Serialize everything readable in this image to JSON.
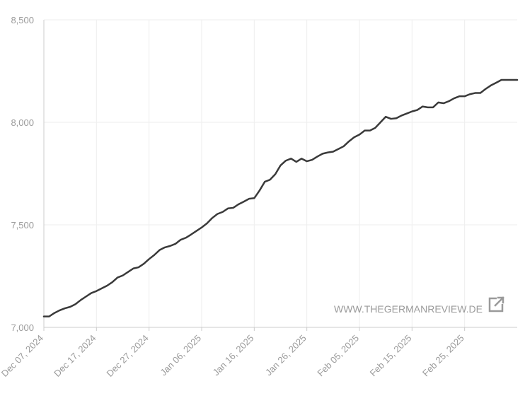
{
  "chart_data": {
    "type": "line",
    "title": "",
    "xlabel": "",
    "ylabel": "",
    "ylim": [
      7000,
      8500
    ],
    "y_ticks": [
      {
        "value": 7000,
        "label": "7,000"
      },
      {
        "value": 7500,
        "label": "7,500"
      },
      {
        "value": 8000,
        "label": "8,000"
      },
      {
        "value": 8500,
        "label": "8,500"
      }
    ],
    "x_range": [
      "2024-12-07",
      "2025-03-07"
    ],
    "x_ticks": [
      {
        "date": "2024-12-07",
        "label": "Dec 07, 2024"
      },
      {
        "date": "2024-12-17",
        "label": "Dec 17, 2024"
      },
      {
        "date": "2024-12-27",
        "label": "Dec 27, 2024"
      },
      {
        "date": "2025-01-06",
        "label": "Jan 06, 2025"
      },
      {
        "date": "2025-01-16",
        "label": "Jan 16, 2025"
      },
      {
        "date": "2025-01-26",
        "label": "Jan 26, 2025"
      },
      {
        "date": "2025-02-05",
        "label": "Feb 05, 2025"
      },
      {
        "date": "2025-02-15",
        "label": "Feb 15, 2025"
      },
      {
        "date": "2025-02-25",
        "label": "Feb 25, 2025"
      }
    ],
    "grid": true,
    "series": [
      {
        "color": "#3a3a3a",
        "points": [
          [
            "2024-12-07",
            7053
          ],
          [
            "2024-12-08",
            7053
          ],
          [
            "2024-12-09",
            7070
          ],
          [
            "2024-12-10",
            7083
          ],
          [
            "2024-12-11",
            7093
          ],
          [
            "2024-12-12",
            7100
          ],
          [
            "2024-12-13",
            7113
          ],
          [
            "2024-12-14",
            7133
          ],
          [
            "2024-12-15",
            7150
          ],
          [
            "2024-12-16",
            7167
          ],
          [
            "2024-12-17",
            7177
          ],
          [
            "2024-12-18",
            7190
          ],
          [
            "2024-12-19",
            7203
          ],
          [
            "2024-12-20",
            7220
          ],
          [
            "2024-12-21",
            7243
          ],
          [
            "2024-12-22",
            7253
          ],
          [
            "2024-12-23",
            7270
          ],
          [
            "2024-12-24",
            7287
          ],
          [
            "2024-12-25",
            7293
          ],
          [
            "2024-12-26",
            7310
          ],
          [
            "2024-12-27",
            7333
          ],
          [
            "2024-12-28",
            7353
          ],
          [
            "2024-12-29",
            7377
          ],
          [
            "2024-12-30",
            7390
          ],
          [
            "2024-12-31",
            7397
          ],
          [
            "2025-01-01",
            7407
          ],
          [
            "2025-01-02",
            7427
          ],
          [
            "2025-01-03",
            7437
          ],
          [
            "2025-01-04",
            7453
          ],
          [
            "2025-01-05",
            7470
          ],
          [
            "2025-01-06",
            7487
          ],
          [
            "2025-01-07",
            7507
          ],
          [
            "2025-01-08",
            7533
          ],
          [
            "2025-01-09",
            7553
          ],
          [
            "2025-01-10",
            7563
          ],
          [
            "2025-01-11",
            7580
          ],
          [
            "2025-01-12",
            7583
          ],
          [
            "2025-01-13",
            7600
          ],
          [
            "2025-01-14",
            7613
          ],
          [
            "2025-01-15",
            7627
          ],
          [
            "2025-01-16",
            7630
          ],
          [
            "2025-01-17",
            7667
          ],
          [
            "2025-01-18",
            7710
          ],
          [
            "2025-01-19",
            7720
          ],
          [
            "2025-01-20",
            7747
          ],
          [
            "2025-01-21",
            7790
          ],
          [
            "2025-01-22",
            7813
          ],
          [
            "2025-01-23",
            7823
          ],
          [
            "2025-01-24",
            7807
          ],
          [
            "2025-01-25",
            7823
          ],
          [
            "2025-01-26",
            7810
          ],
          [
            "2025-01-27",
            7817
          ],
          [
            "2025-01-28",
            7833
          ],
          [
            "2025-01-29",
            7847
          ],
          [
            "2025-01-30",
            7853
          ],
          [
            "2025-01-31",
            7857
          ],
          [
            "2025-02-01",
            7870
          ],
          [
            "2025-02-02",
            7883
          ],
          [
            "2025-02-03",
            7907
          ],
          [
            "2025-02-04",
            7927
          ],
          [
            "2025-02-05",
            7940
          ],
          [
            "2025-02-06",
            7960
          ],
          [
            "2025-02-07",
            7960
          ],
          [
            "2025-02-08",
            7973
          ],
          [
            "2025-02-09",
            8000
          ],
          [
            "2025-02-10",
            8027
          ],
          [
            "2025-02-11",
            8017
          ],
          [
            "2025-02-12",
            8020
          ],
          [
            "2025-02-13",
            8033
          ],
          [
            "2025-02-14",
            8043
          ],
          [
            "2025-02-15",
            8053
          ],
          [
            "2025-02-16",
            8060
          ],
          [
            "2025-02-17",
            8077
          ],
          [
            "2025-02-18",
            8073
          ],
          [
            "2025-02-19",
            8073
          ],
          [
            "2025-02-20",
            8097
          ],
          [
            "2025-02-21",
            8093
          ],
          [
            "2025-02-22",
            8103
          ],
          [
            "2025-02-23",
            8117
          ],
          [
            "2025-02-24",
            8127
          ],
          [
            "2025-02-25",
            8127
          ],
          [
            "2025-02-26",
            8137
          ],
          [
            "2025-02-27",
            8143
          ],
          [
            "2025-02-28",
            8143
          ],
          [
            "2025-03-01",
            8163
          ],
          [
            "2025-03-02",
            8180
          ],
          [
            "2025-03-03",
            8193
          ],
          [
            "2025-03-04",
            8207
          ],
          [
            "2025-03-05",
            8207
          ],
          [
            "2025-03-06",
            8207
          ],
          [
            "2025-03-07",
            8207
          ]
        ]
      }
    ]
  },
  "watermark": {
    "text": "WWW.THEGERMANREVIEW.DE",
    "icon": "external-link-icon"
  },
  "colors": {
    "line": "#3a3a3a",
    "grid": "#eeeeee",
    "axis": "#cccccc",
    "text": "#9a9a9a"
  }
}
